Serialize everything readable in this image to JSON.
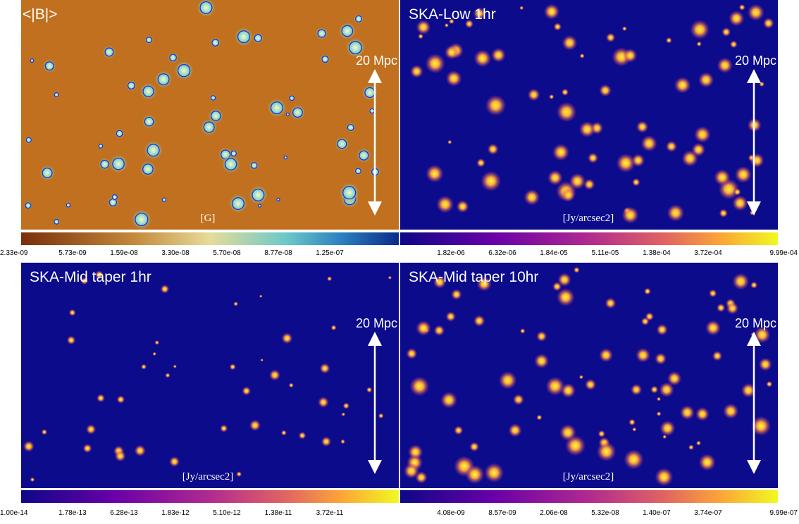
{
  "panels": [
    {
      "title": "<|B|>",
      "unit": "[G]",
      "scale_bar": "20 Mpc",
      "colorbar": {
        "ticks": [
          "2.33e-09",
          "5.73e-09",
          "1.59e-08",
          "3.30e-08",
          "5.70e-08",
          "8.77e-08",
          "1.25e-07"
        ]
      }
    },
    {
      "title": "SKA-Low  1hr",
      "unit": "[Jy/arcsec2]",
      "scale_bar": "20 Mpc",
      "colorbar": {
        "ticks": [
          "1.82e-06",
          "6.32e-06",
          "1.84e-05",
          "5.11e-05",
          "1.38e-04",
          "3.72e-04",
          "9.99e-04"
        ]
      }
    },
    {
      "title": "SKA-Mid taper 1hr",
      "unit": "[Jy/arcsec2]",
      "scale_bar": "20 Mpc",
      "colorbar": {
        "ticks": [
          "1.00e-14",
          "1.78e-13",
          "6.28e-13",
          "1.83e-12",
          "5.10e-12",
          "1.38e-11",
          "3.72e-11"
        ]
      }
    },
    {
      "title": "SKA-Mid  taper 10hr",
      "unit": "[Jy/arcsec2]",
      "scale_bar": "20 Mpc",
      "colorbar": {
        "ticks": [
          "4.08e-09",
          "8.57e-09",
          "2.06e-08",
          "5.32e-08",
          "1.40e-07",
          "3.74e-07",
          "9.99e-07"
        ]
      }
    }
  ]
}
